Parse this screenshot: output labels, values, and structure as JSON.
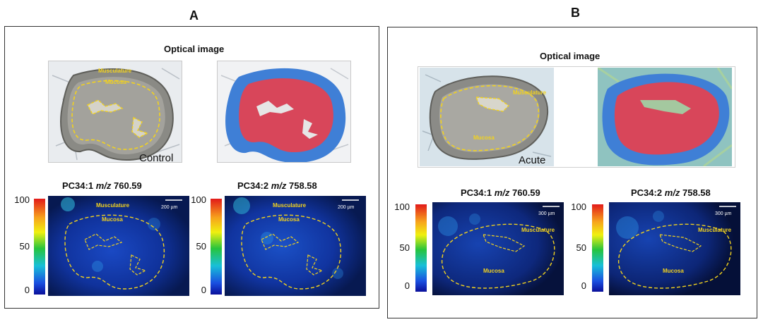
{
  "panels": {
    "a": {
      "letter": "A",
      "optical_title": "Optical image",
      "condition": "Control",
      "musculature": "Musculature",
      "mucosa": "Mucosa",
      "scale": "200 µm",
      "map1": {
        "name": "PC34:1",
        "mz_label": "m/z",
        "mz": "760.59"
      },
      "map2": {
        "name": "PC34:2",
        "mz_label": "m/z",
        "mz": "758.58"
      },
      "colorbar": {
        "max": "100",
        "mid": "50",
        "min": "0"
      }
    },
    "b": {
      "letter": "B",
      "optical_title": "Optical image",
      "condition": "Acute",
      "musculature": "Musculature",
      "mucosa": "Mucosa",
      "scale": "300 µm",
      "map1": {
        "name": "PC34:1",
        "mz_label": "m/z",
        "mz": "760.59"
      },
      "map2": {
        "name": "PC34:2",
        "mz_label": "m/z",
        "mz": "758.58"
      },
      "colorbar": {
        "max": "100",
        "mid": "50",
        "min": "0"
      }
    }
  },
  "colors": {
    "dashed_outline": "#f2d21e",
    "mucosa_overlay": "#d8465a",
    "musculature_overlay": "#3f7fd6",
    "ion_map_background": "#06102e"
  }
}
